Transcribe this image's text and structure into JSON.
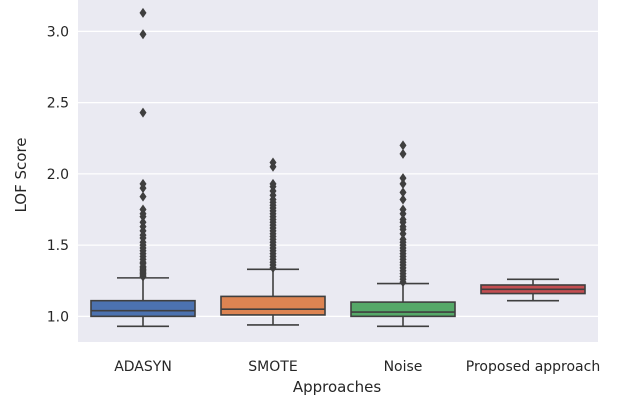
{
  "chart_data": {
    "type": "box",
    "xlabel": "Approaches",
    "ylabel": "LOF Score",
    "ylim": [
      0.82,
      3.22
    ],
    "yticks": [
      "1.0",
      "1.5",
      "2.0",
      "2.5",
      "3.0"
    ],
    "grid": true,
    "categories": [
      "ADASYN",
      "SMOTE",
      "Noise",
      "Proposed approach"
    ],
    "series": [
      {
        "category": "ADASYN",
        "color": "#4c72b0",
        "whisker_low": 0.93,
        "q1": 1.0,
        "median": 1.04,
        "q3": 1.11,
        "whisker_high": 1.27,
        "outliers": [
          1.28,
          1.29,
          1.3,
          1.31,
          1.32,
          1.33,
          1.34,
          1.35,
          1.37,
          1.38,
          1.4,
          1.42,
          1.44,
          1.46,
          1.48,
          1.5,
          1.52,
          1.55,
          1.57,
          1.6,
          1.63,
          1.66,
          1.7,
          1.72,
          1.75,
          1.84,
          1.9,
          1.93,
          2.43,
          2.98,
          3.13
        ]
      },
      {
        "category": "SMOTE",
        "color": "#dd8452",
        "whisker_low": 0.94,
        "q1": 1.01,
        "median": 1.05,
        "q3": 1.14,
        "whisker_high": 1.33,
        "outliers": [
          1.34,
          1.36,
          1.38,
          1.4,
          1.42,
          1.44,
          1.46,
          1.48,
          1.5,
          1.52,
          1.54,
          1.56,
          1.58,
          1.6,
          1.62,
          1.64,
          1.66,
          1.68,
          1.7,
          1.72,
          1.74,
          1.76,
          1.78,
          1.8,
          1.82,
          1.85,
          1.88,
          1.91,
          1.93,
          2.05,
          2.08
        ]
      },
      {
        "category": "Noise",
        "color": "#55a868",
        "whisker_low": 0.93,
        "q1": 1.0,
        "median": 1.03,
        "q3": 1.1,
        "whisker_high": 1.23,
        "outliers": [
          1.24,
          1.26,
          1.28,
          1.3,
          1.32,
          1.34,
          1.36,
          1.38,
          1.4,
          1.42,
          1.44,
          1.46,
          1.48,
          1.5,
          1.52,
          1.54,
          1.58,
          1.61,
          1.63,
          1.66,
          1.68,
          1.72,
          1.75,
          1.82,
          1.87,
          1.93,
          1.97,
          2.14,
          2.2
        ]
      },
      {
        "category": "Proposed approach",
        "color": "#c44e52",
        "whisker_low": 1.11,
        "q1": 1.16,
        "median": 1.19,
        "q3": 1.22,
        "whisker_high": 1.26,
        "outliers": []
      }
    ]
  }
}
